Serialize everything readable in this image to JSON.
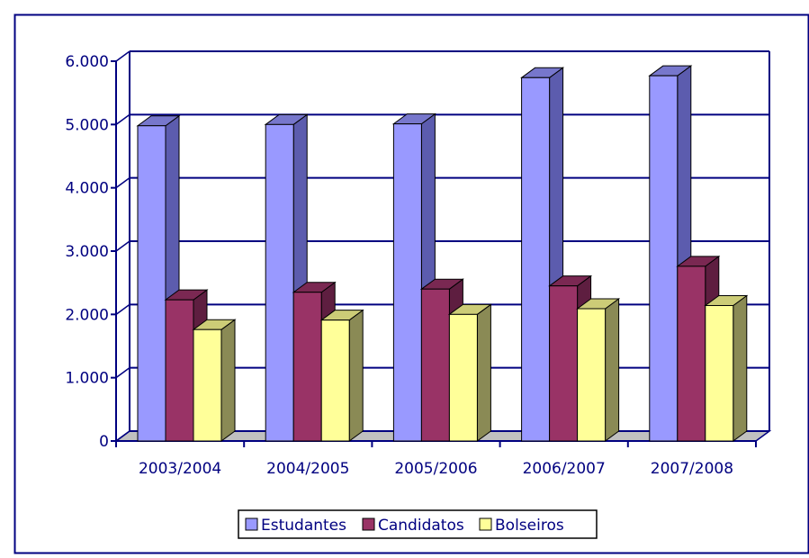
{
  "chart_data": {
    "type": "bar",
    "categories": [
      "2003/2004",
      "2004/2005",
      "2005/2006",
      "2006/2007",
      "2007/2008"
    ],
    "series": [
      {
        "name": "Estudantes",
        "values": [
          4980,
          5000,
          5010,
          5740,
          5770
        ]
      },
      {
        "name": "Candidatos",
        "values": [
          2230,
          2350,
          2400,
          2450,
          2760
        ]
      },
      {
        "name": "Bolseiros",
        "values": [
          1760,
          1910,
          2000,
          2090,
          2140
        ]
      }
    ],
    "y_ticks": [
      "0",
      "1.000",
      "2.000",
      "3.000",
      "4.000",
      "5.000",
      "6.000"
    ],
    "ylim": [
      0,
      6000
    ],
    "grid": true,
    "legend_position": "bottom",
    "colors": {
      "Estudantes": {
        "front": "#9999ff",
        "top": "#7777cc",
        "side": "#5c5cae"
      },
      "Candidatos": {
        "front": "#993366",
        "top": "#7a2852",
        "side": "#5e1e40"
      },
      "Bolseiros": {
        "front": "#ffff99",
        "top": "#cccc77",
        "side": "#8a8a55"
      },
      "axis": "#000080",
      "frame": "#000080",
      "text": "#000080"
    }
  }
}
